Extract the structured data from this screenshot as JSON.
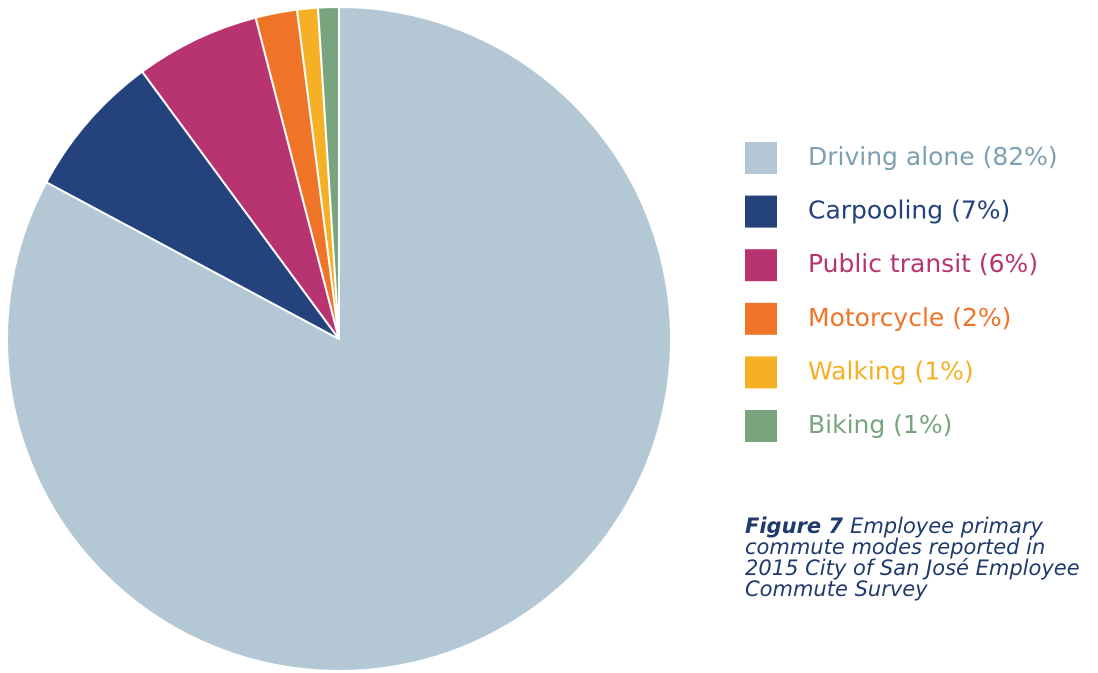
{
  "chart_data": {
    "type": "pie",
    "categories": [
      "Driving alone (82%)",
      "Carpooling (7%)",
      "Public transit (6%)",
      "Motorcycle (2%)",
      "Walking (1%)",
      "Biking (1%)"
    ],
    "values": [
      82,
      7,
      6,
      2,
      1,
      1
    ],
    "colors": [
      "#b3c8d4",
      "#24437c",
      "#b83470",
      "#f07427",
      "#f5b026",
      "#78a57d"
    ],
    "legend_text_colors": [
      "#7f9fb3",
      "#24437c",
      "#b83470",
      "#f07427",
      "#f5b026",
      "#78a57d"
    ],
    "legend": "right",
    "caption": {
      "label": "Figure 7",
      "lines": [
        "Employee primary",
        "commute modes reported in",
        "2015 City of San José Employee",
        "Commute Survey"
      ]
    }
  }
}
